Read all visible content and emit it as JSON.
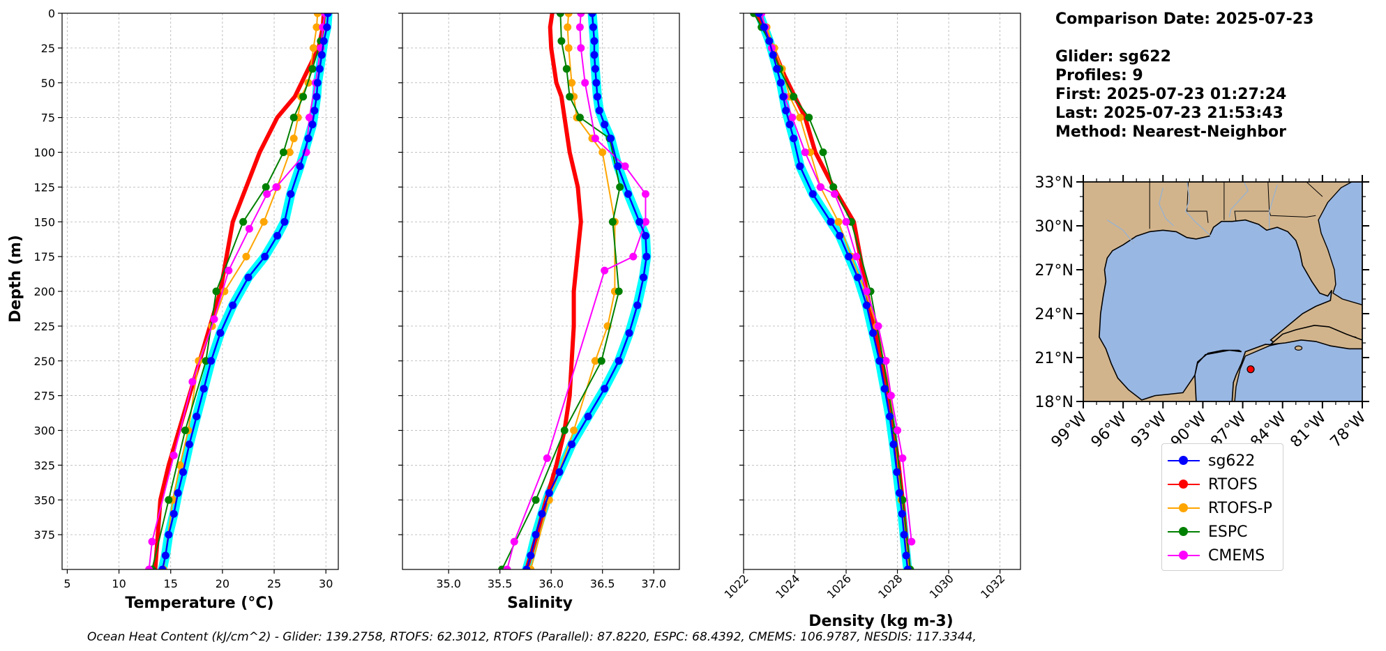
{
  "info": {
    "comparison_date": "Comparison Date: 2025-07-23",
    "glider": "Glider: sg622",
    "profiles": "Profiles: 9",
    "first": "First: 2025-07-23 01:27:24",
    "last": "Last: 2025-07-23 21:53:43",
    "method": "Method: Nearest-Neighbor"
  },
  "footer": "Ocean Heat Content (kJ/cm^2) - Glider: 139.2758,  RTOFS: 62.3012,  RTOFS (Parallel): 87.8220,  ESPC: 68.4392,  CMEMS: 106.9787,  NESDIS: 117.3344,",
  "colors": {
    "sg622": "#0000ff",
    "sg622_envelope": "#00ffff",
    "RTOFS": "#ff0000",
    "RTOFS-P": "#ffa500",
    "ESPC": "#008000",
    "CMEMS": "#ff00ff",
    "land": "#d2b48c",
    "ocean": "#99b7e3",
    "glider_marker": "#ff0000"
  },
  "legend": [
    {
      "label": "sg622",
      "key": "sg622"
    },
    {
      "label": "RTOFS",
      "key": "RTOFS"
    },
    {
      "label": "RTOFS-P",
      "key": "RTOFS-P"
    },
    {
      "label": "ESPC",
      "key": "ESPC"
    },
    {
      "label": "CMEMS",
      "key": "CMEMS"
    }
  ],
  "chart_data": [
    {
      "type": "line",
      "xlabel": "Temperature (°C)",
      "ylabel": "Depth (m)",
      "xlim": [
        4.5,
        31.2
      ],
      "ylim": [
        400,
        0
      ],
      "xticks": [
        5,
        10,
        15,
        20,
        25,
        30
      ],
      "yticks": [
        0,
        25,
        50,
        75,
        100,
        125,
        150,
        175,
        200,
        225,
        250,
        275,
        300,
        325,
        350,
        375
      ],
      "grid": true,
      "series": [
        {
          "key": "sg622",
          "x": [
            30.2,
            30.1,
            29.8,
            29.6,
            29.4,
            29.2,
            29.1,
            28.9,
            28.7,
            28.3,
            27.5,
            26.6,
            26.0,
            25.3,
            24.1,
            22.5,
            21.0,
            19.8,
            18.9,
            18.2,
            17.5,
            16.8,
            16.2,
            15.7,
            15.3,
            14.8,
            14.5,
            14.2
          ],
          "y": [
            0,
            10,
            20,
            30,
            40,
            50,
            60,
            70,
            80,
            90,
            110,
            130,
            150,
            160,
            175,
            190,
            210,
            230,
            250,
            270,
            290,
            310,
            330,
            345,
            360,
            375,
            390,
            400
          ]
        },
        {
          "key": "RTOFS",
          "x": [
            29.8,
            29.7,
            29.3,
            28.3,
            27.0,
            25.3,
            23.6,
            21.0,
            19.8,
            18.8,
            17.8,
            16.8,
            15.8,
            14.8,
            14.0,
            13.5
          ],
          "y": [
            0,
            10,
            25,
            40,
            60,
            75,
            100,
            150,
            200,
            225,
            250,
            275,
            300,
            325,
            350,
            400
          ]
        },
        {
          "key": "RTOFS-P",
          "x": [
            29.2,
            29.1,
            28.8,
            28.3,
            27.6,
            27.3,
            26.9,
            26.5,
            25.3,
            24.0,
            22.3,
            20.2,
            19.0,
            17.7,
            16.7,
            15.9,
            15.2,
            14.3
          ],
          "y": [
            0,
            10,
            25,
            50,
            60,
            75,
            90,
            100,
            125,
            150,
            175,
            200,
            225,
            250,
            300,
            325,
            350,
            400
          ]
        },
        {
          "key": "ESPC",
          "x": [
            29.9,
            29.5,
            28.7,
            27.8,
            26.9,
            25.9,
            24.2,
            22.0,
            19.4,
            18.4,
            16.4,
            14.8,
            13.2
          ],
          "y": [
            0,
            20,
            40,
            60,
            75,
            100,
            125,
            150,
            200,
            250,
            300,
            350,
            400
          ]
        },
        {
          "key": "CMEMS",
          "x": [
            29.9,
            29.7,
            29.5,
            29.0,
            28.4,
            28.1,
            25.2,
            24.3,
            22.6,
            20.6,
            19.2,
            17.1,
            15.3,
            13.2,
            12.9
          ],
          "y": [
            0,
            10,
            25,
            50,
            75,
            100,
            125,
            130,
            155,
            185,
            220,
            265,
            318,
            380,
            400
          ]
        }
      ]
    },
    {
      "type": "line",
      "xlabel": "Salinity",
      "xlim": [
        34.55,
        37.25
      ],
      "ylim": [
        400,
        0
      ],
      "xticks": [
        35.0,
        35.5,
        36.0,
        36.5,
        37.0
      ],
      "grid": true,
      "series": [
        {
          "key": "sg622",
          "x": [
            36.4,
            36.41,
            36.42,
            36.42,
            36.43,
            36.44,
            36.45,
            36.47,
            36.52,
            36.58,
            36.65,
            36.75,
            36.86,
            36.92,
            36.93,
            36.9,
            36.84,
            36.76,
            36.66,
            36.52,
            36.36,
            36.2,
            36.08,
            35.98,
            35.91,
            35.85,
            35.8,
            35.76
          ],
          "y": [
            0,
            10,
            20,
            30,
            40,
            50,
            60,
            70,
            80,
            90,
            110,
            130,
            150,
            160,
            175,
            190,
            210,
            230,
            250,
            270,
            290,
            310,
            330,
            345,
            360,
            375,
            390,
            400
          ]
        },
        {
          "key": "RTOFS",
          "x": [
            36.01,
            35.99,
            36.0,
            36.05,
            36.1,
            36.13,
            36.18,
            36.26,
            36.29,
            36.22,
            36.22,
            36.2,
            36.18,
            36.13,
            36.05,
            35.95,
            35.86,
            35.76
          ],
          "y": [
            0,
            10,
            25,
            50,
            60,
            75,
            100,
            125,
            150,
            200,
            225,
            250,
            275,
            300,
            325,
            350,
            375,
            400
          ]
        },
        {
          "key": "RTOFS-P",
          "x": [
            36.17,
            36.16,
            36.17,
            36.2,
            36.22,
            36.25,
            36.4,
            36.5,
            36.62,
            36.62,
            36.55,
            36.43,
            36.22,
            35.98,
            35.8
          ],
          "y": [
            0,
            10,
            25,
            50,
            60,
            75,
            90,
            100,
            150,
            200,
            225,
            250,
            300,
            350,
            400
          ]
        },
        {
          "key": "ESPC",
          "x": [
            36.09,
            36.1,
            36.15,
            36.18,
            36.28,
            36.57,
            36.67,
            36.6,
            36.66,
            36.49,
            36.13,
            35.85,
            35.52
          ],
          "y": [
            0,
            20,
            40,
            60,
            75,
            90,
            125,
            150,
            200,
            250,
            300,
            350,
            400
          ]
        },
        {
          "key": "CMEMS",
          "x": [
            36.29,
            36.28,
            36.29,
            36.33,
            36.43,
            36.72,
            36.92,
            36.92,
            36.8,
            36.52,
            35.96,
            35.64,
            35.57
          ],
          "y": [
            0,
            10,
            25,
            50,
            90,
            110,
            130,
            150,
            175,
            185,
            320,
            380,
            400
          ]
        }
      ]
    },
    {
      "type": "line",
      "xlabel": "Density (kg m-3)",
      "xlim": [
        1022,
        1032.8
      ],
      "ylim": [
        400,
        0
      ],
      "xticks": [
        1022,
        1024,
        1026,
        1028,
        1030,
        1032
      ],
      "grid": true,
      "series": [
        {
          "key": "sg622",
          "x": [
            1022.6,
            1022.8,
            1023.0,
            1023.15,
            1023.3,
            1023.45,
            1023.55,
            1023.65,
            1023.8,
            1023.95,
            1024.2,
            1024.7,
            1025.4,
            1025.75,
            1026.1,
            1026.45,
            1026.8,
            1027.05,
            1027.3,
            1027.5,
            1027.7,
            1027.85,
            1027.98,
            1028.08,
            1028.18,
            1028.26,
            1028.34,
            1028.4
          ],
          "y": [
            0,
            10,
            20,
            30,
            40,
            50,
            60,
            70,
            80,
            90,
            110,
            130,
            150,
            160,
            175,
            190,
            210,
            230,
            250,
            270,
            290,
            310,
            330,
            345,
            360,
            375,
            390,
            400
          ]
        },
        {
          "key": "RTOFS",
          "x": [
            1022.5,
            1022.8,
            1023.15,
            1023.6,
            1024.0,
            1024.4,
            1024.8,
            1025.5,
            1026.3,
            1026.8,
            1027.1,
            1027.4,
            1027.65,
            1027.85,
            1028.05,
            1028.2,
            1028.45
          ],
          "y": [
            0,
            10,
            25,
            45,
            60,
            75,
            100,
            125,
            150,
            200,
            225,
            250,
            275,
            300,
            325,
            350,
            400
          ]
        },
        {
          "key": "RTOFS-P",
          "x": [
            1022.6,
            1022.9,
            1023.2,
            1023.5,
            1023.8,
            1024.2,
            1024.6,
            1025.0,
            1025.7,
            1026.2,
            1026.75,
            1027.2,
            1027.55,
            1027.9,
            1028.15,
            1028.45
          ],
          "y": [
            0,
            10,
            25,
            40,
            60,
            75,
            100,
            125,
            150,
            175,
            200,
            225,
            250,
            300,
            350,
            400
          ]
        },
        {
          "key": "ESPC",
          "x": [
            1022.4,
            1022.7,
            1023.0,
            1023.4,
            1023.95,
            1024.55,
            1025.1,
            1025.5,
            1026.2,
            1026.95,
            1027.45,
            1027.9,
            1028.2,
            1028.5
          ],
          "y": [
            0,
            10,
            20,
            40,
            60,
            75,
            100,
            125,
            150,
            200,
            250,
            300,
            350,
            400
          ]
        },
        {
          "key": "CMEMS",
          "x": [
            1022.7,
            1022.85,
            1023.1,
            1023.3,
            1023.6,
            1023.9,
            1024.4,
            1025.0,
            1025.55,
            1026.0,
            1026.4,
            1026.8,
            1027.25,
            1027.55,
            1027.75,
            1028.0,
            1028.2,
            1028.55
          ],
          "y": [
            0,
            10,
            25,
            40,
            60,
            75,
            100,
            125,
            130,
            150,
            175,
            200,
            225,
            250,
            275,
            300,
            320,
            380
          ]
        }
      ]
    },
    {
      "type": "map",
      "lon_ticks": [
        "99°W",
        "96°W",
        "93°W",
        "90°W",
        "87°W",
        "84°W",
        "81°W",
        "78°W"
      ],
      "lat_ticks": [
        "33°N",
        "30°N",
        "27°N",
        "24°N",
        "21°N",
        "18°N"
      ],
      "lon_range": [
        -99,
        -78
      ],
      "lat_range": [
        18,
        33
      ],
      "glider_position": {
        "lon": -86.4,
        "lat": 20.2
      }
    }
  ]
}
